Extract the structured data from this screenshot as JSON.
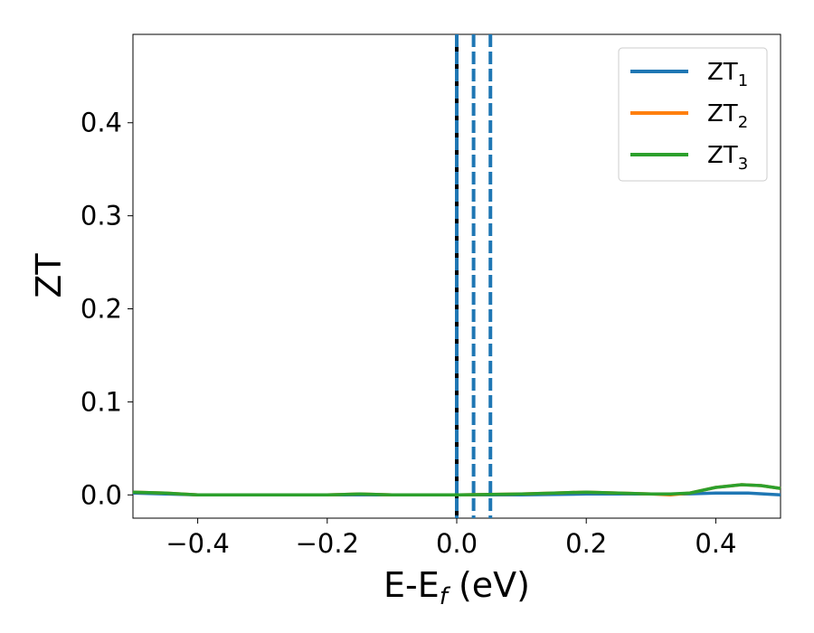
{
  "chart_data": {
    "type": "line",
    "xlabel": "E-E_f (eV)",
    "xlabel_parts": {
      "main": "E-E",
      "sub": "f",
      "rest": " (eV)"
    },
    "ylabel": "ZT",
    "xlim": [
      -0.5,
      0.5
    ],
    "ylim": [
      -0.025,
      0.495
    ],
    "xticks": [
      -0.4,
      -0.2,
      0.0,
      0.2,
      0.4
    ],
    "xtick_labels": [
      "−0.4",
      "−0.2",
      "0.0",
      "0.2",
      "0.4"
    ],
    "yticks": [
      0.0,
      0.1,
      0.2,
      0.3,
      0.4
    ],
    "ytick_labels": [
      "0.0",
      "0.1",
      "0.2",
      "0.3",
      "0.4"
    ],
    "grid": false,
    "legend_position": "top-right",
    "series": [
      {
        "name": "ZT_1",
        "label_main": "ZT",
        "label_sub": "1",
        "color": "#1f77b4",
        "x": [
          -0.5,
          -0.4,
          -0.3,
          -0.2,
          -0.1,
          0.0,
          0.1,
          0.2,
          0.3,
          0.35,
          0.4,
          0.45,
          0.5
        ],
        "y": [
          0.002,
          0.0,
          0.0,
          0.0,
          0.0,
          0.0,
          0.0,
          0.001,
          0.001,
          0.001,
          0.002,
          0.002,
          0.0
        ]
      },
      {
        "name": "ZT_2",
        "label_main": "ZT",
        "label_sub": "2",
        "color": "#ff7f0e",
        "x": [
          -0.5,
          -0.45,
          -0.4,
          -0.3,
          -0.2,
          -0.15,
          -0.1,
          0.0,
          0.1,
          0.15,
          0.2,
          0.25,
          0.3,
          0.33,
          0.36,
          0.4,
          0.44,
          0.47,
          0.5
        ],
        "y": [
          0.003,
          0.002,
          0.0,
          0.0,
          0.0,
          0.001,
          0.0,
          0.0,
          0.001,
          0.002,
          0.003,
          0.002,
          0.001,
          0.0,
          0.002,
          0.008,
          0.011,
          0.01,
          0.007
        ]
      },
      {
        "name": "ZT_3",
        "label_main": "ZT",
        "label_sub": "3",
        "color": "#2ca02c",
        "x": [
          -0.5,
          -0.45,
          -0.4,
          -0.3,
          -0.2,
          -0.15,
          -0.1,
          0.0,
          0.1,
          0.15,
          0.2,
          0.25,
          0.3,
          0.33,
          0.36,
          0.4,
          0.44,
          0.47,
          0.5
        ],
        "y": [
          0.003,
          0.002,
          0.0,
          0.0,
          0.0,
          0.001,
          0.0,
          0.0,
          0.001,
          0.002,
          0.003,
          0.002,
          0.001,
          0.001,
          0.002,
          0.008,
          0.011,
          0.01,
          0.007
        ]
      }
    ],
    "vertical_lines": [
      {
        "x": 0.0,
        "color": "#000000",
        "style": "solid"
      },
      {
        "x": 0.0,
        "color": "#1f77b4",
        "style": "dashed"
      },
      {
        "x": 0.026,
        "color": "#1f77b4",
        "style": "dashed"
      },
      {
        "x": 0.052,
        "color": "#1f77b4",
        "style": "dashed"
      }
    ]
  }
}
